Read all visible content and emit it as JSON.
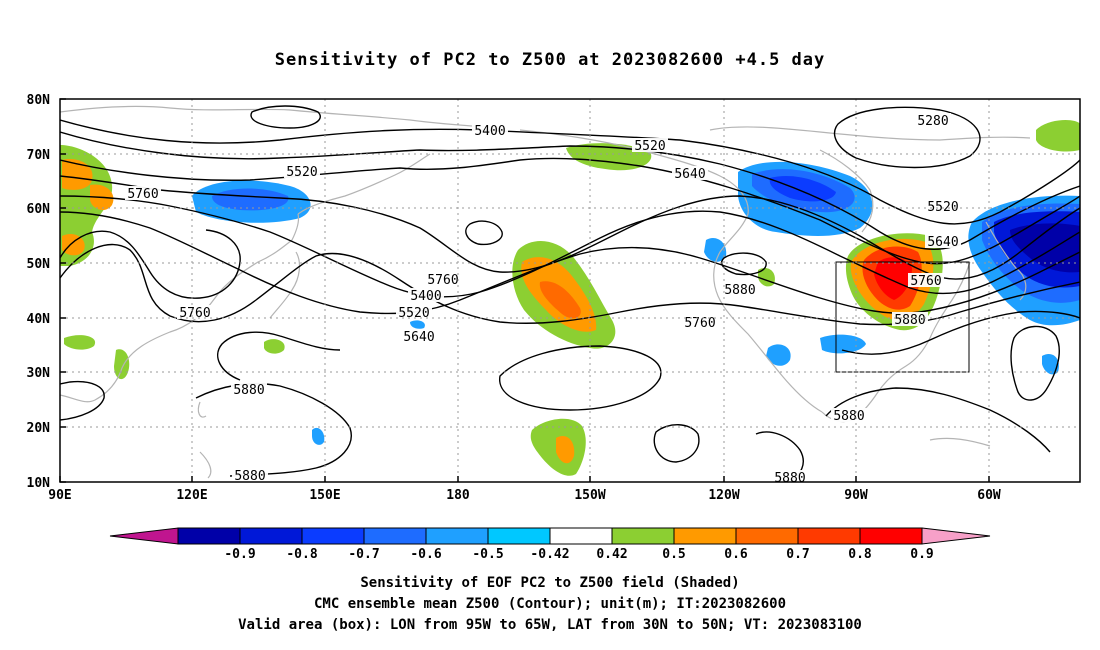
{
  "title": "Sensitivity of PC2 to Z500 at 2023082600 +4.5 day",
  "map": {
    "lat_ticks": [
      "80N",
      "70N",
      "60N",
      "50N",
      "40N",
      "30N",
      "20N",
      "10N"
    ],
    "lon_ticks": [
      "90E",
      "120E",
      "150E",
      "180",
      "150W",
      "120W",
      "90W",
      "60W"
    ],
    "contour_labels": [
      "5400",
      "5280",
      "5520",
      "5520",
      "5640",
      "5760",
      "5520",
      "5640",
      "5760",
      "5880",
      "5760",
      "5880",
      "5760",
      "5400",
      "5520",
      "5640",
      "5760",
      "5880",
      "5880",
      "5880",
      "5880"
    ],
    "valid_box": {
      "lon_from": "95W",
      "lon_to": "65W",
      "lat_from": "30N",
      "lat_to": "50N"
    }
  },
  "colorbar": {
    "labels": [
      "-0.9",
      "-0.8",
      "-0.7",
      "-0.6",
      "-0.5",
      "-0.42",
      "0.42",
      "0.5",
      "0.6",
      "0.7",
      "0.8",
      "0.9"
    ],
    "low_end_color": "#c0158f",
    "high_end_color": "#f7a0c8",
    "colors": [
      "#0000a8",
      "#0018d8",
      "#0b3cff",
      "#1e6cff",
      "#1fa0ff",
      "#00c8ff",
      "#ffffff",
      "#8ccf32",
      "#ff9a00",
      "#ff6a00",
      "#ff3a00",
      "#ff0000"
    ]
  },
  "caption": {
    "line1": "Sensitivity of EOF PC2 to Z500 field (Shaded)",
    "line2": "CMC ensemble mean Z500 (Contour); unit(m); IT:2023082600",
    "line3": "Valid area (box): LON from 95W to 65W, LAT from 30N to 50N; VT: 2023083100"
  }
}
